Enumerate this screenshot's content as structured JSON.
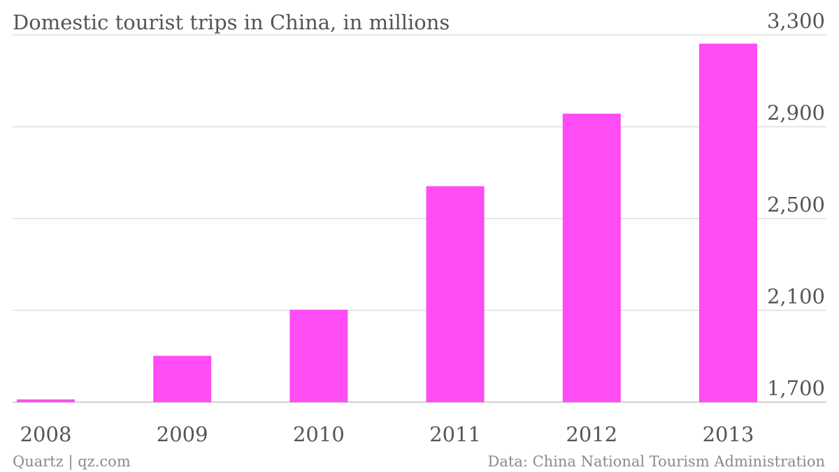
{
  "chart_data": {
    "type": "bar",
    "title": "Domestic tourist trips in China, in millions",
    "categories": [
      "2008",
      "2009",
      "2010",
      "2011",
      "2012",
      "2013"
    ],
    "values": [
      1712,
      1902,
      2103,
      2641,
      2957,
      3262
    ],
    "ylim": [
      1700,
      3300
    ],
    "yticks": [
      "1,700",
      "2,100",
      "2,500",
      "2,900",
      "3,300"
    ],
    "ytick_values": [
      1700,
      2100,
      2500,
      2900,
      3300
    ],
    "y_axis_side": "right",
    "grid": true,
    "bar_color": "#ff4cf4"
  },
  "footer": {
    "left": "Quartz | qz.com",
    "right": "Data: China National Tourism Administration"
  }
}
